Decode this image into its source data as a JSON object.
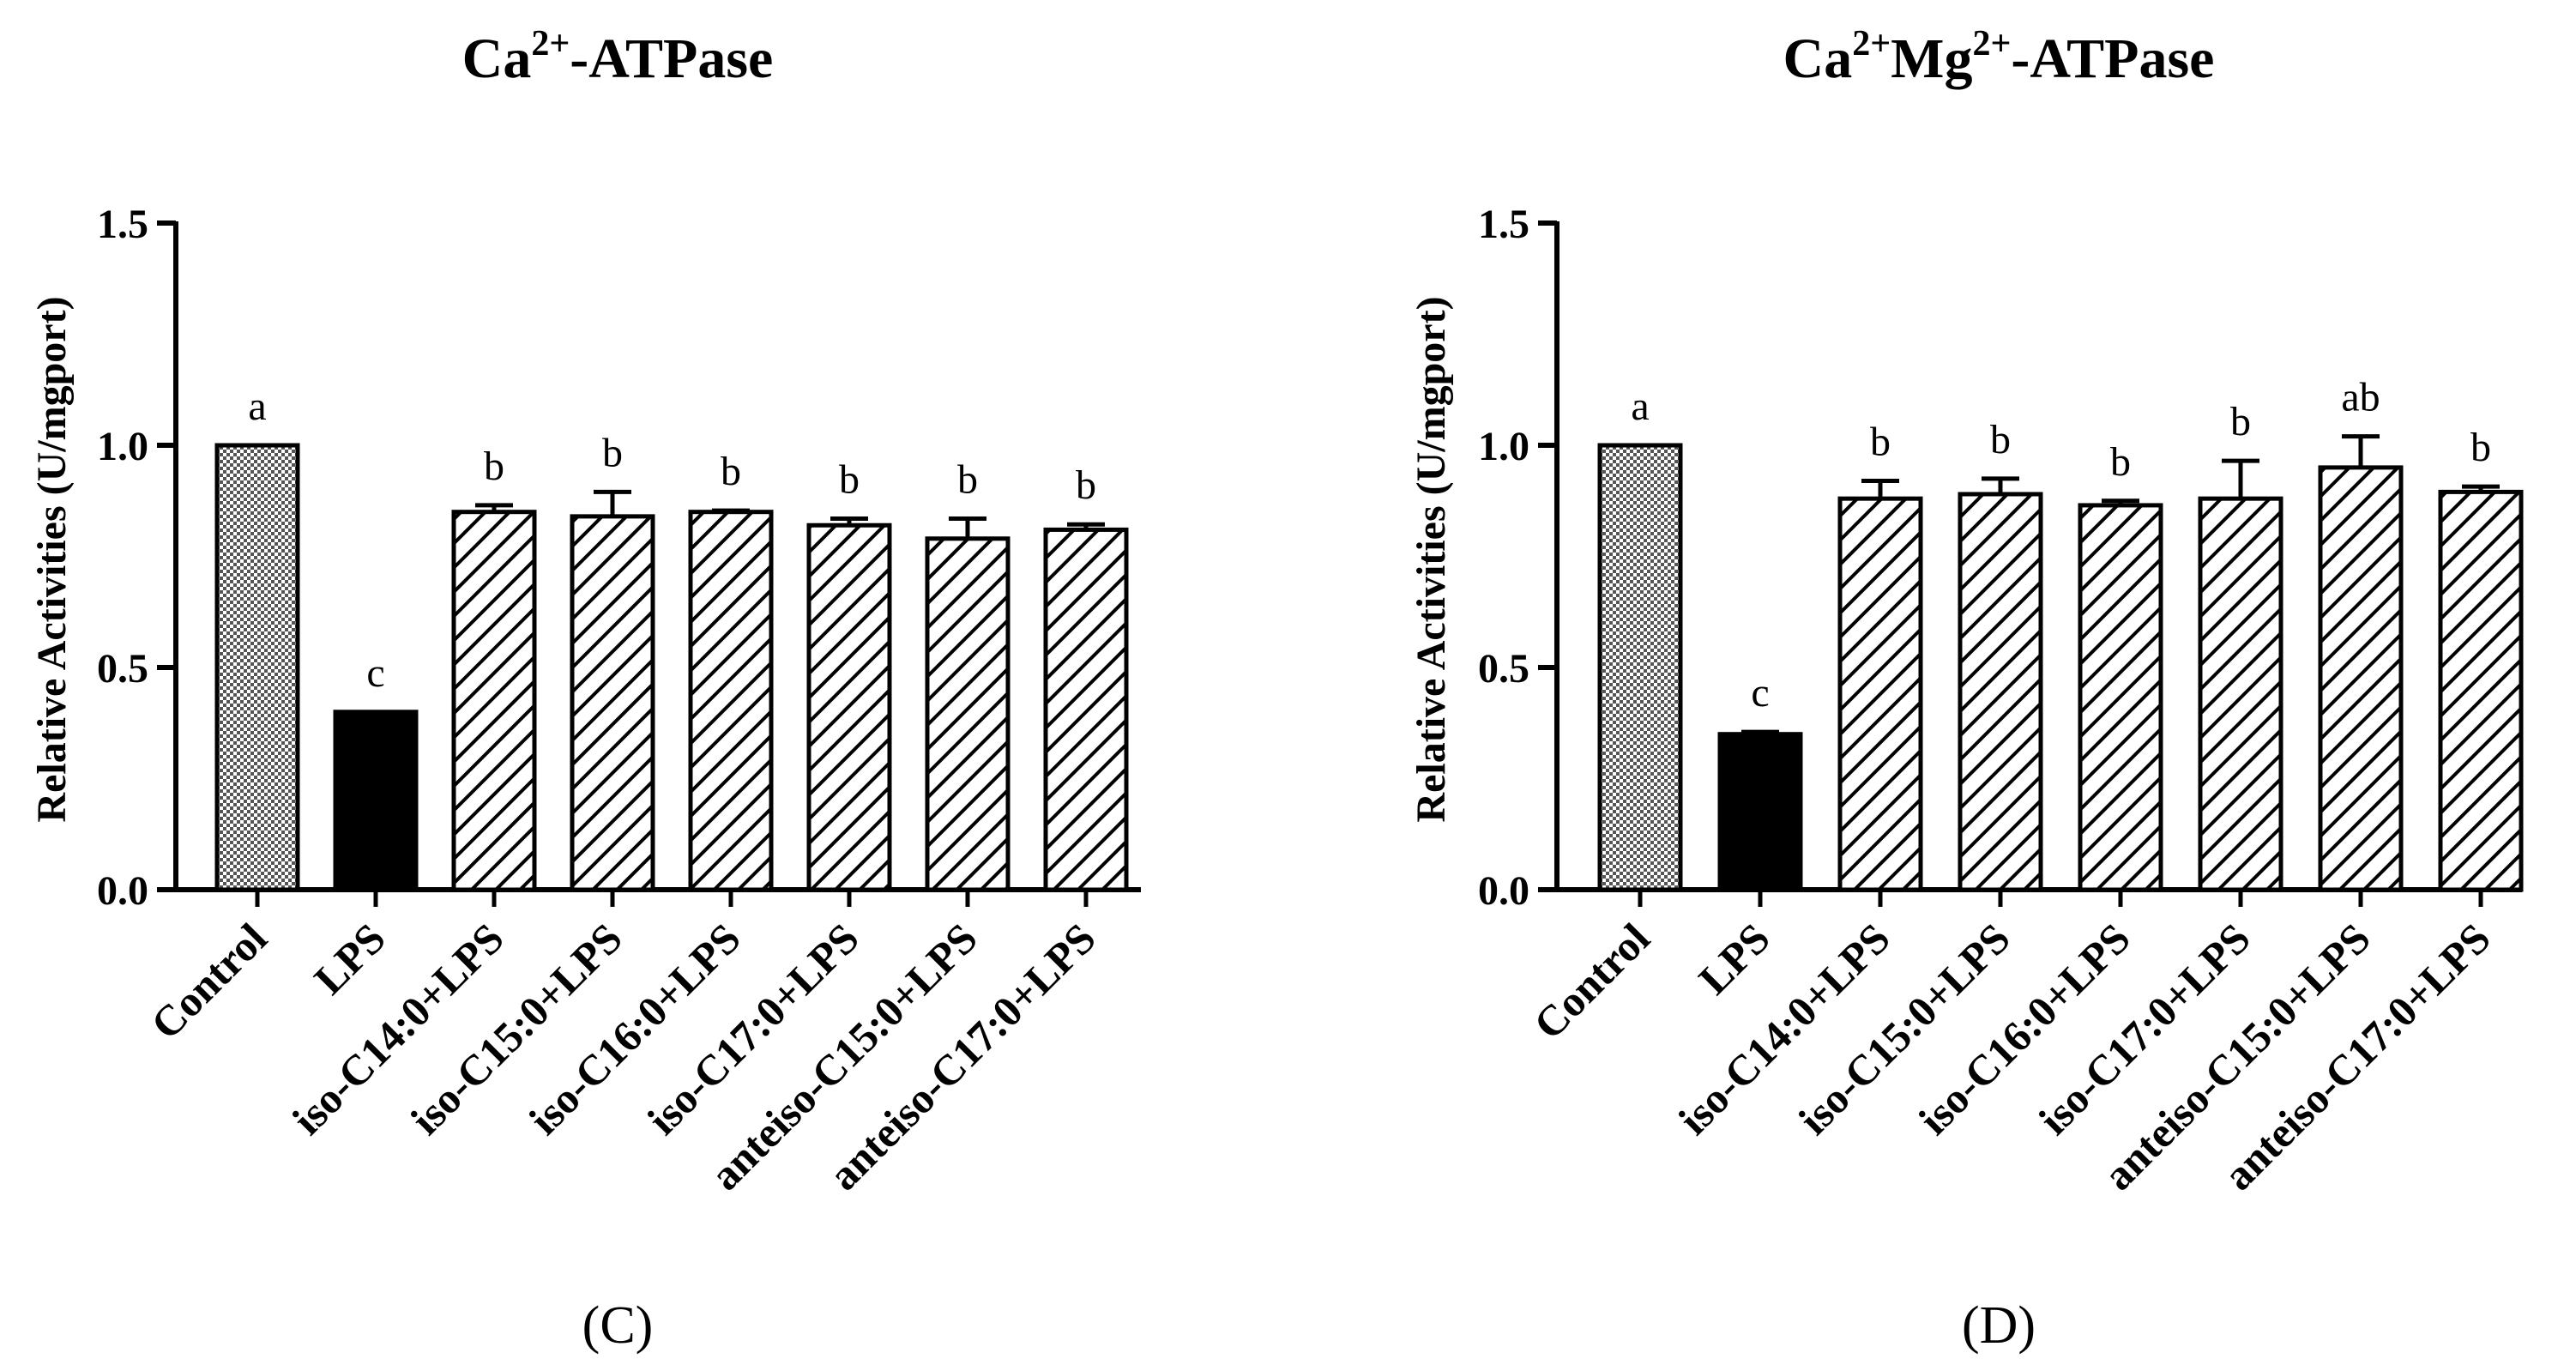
{
  "chart_data": [
    {
      "panel": "C",
      "type": "bar",
      "title": {
        "prefix": "Ca",
        "sup1": "2+",
        "rest": "-ATPase"
      },
      "ylabel": "Relative Activities (U/mgport)",
      "ylim": [
        0,
        1.5
      ],
      "yticks": [
        "0.0",
        "0.5",
        "1.0",
        "1.5"
      ],
      "categories": [
        "Control",
        "LPS",
        "iso-C14:0+LPS",
        "iso-C15:0+LPS",
        "iso-C16:0+LPS",
        "iso-C17:0+LPS",
        "anteiso-C15:0+LPS",
        "anteiso-C17:0+LPS"
      ],
      "values": [
        1.0,
        0.4,
        0.85,
        0.84,
        0.85,
        0.82,
        0.79,
        0.81
      ],
      "errors": [
        0,
        0,
        0.015,
        0.055,
        0.003,
        0.015,
        0.045,
        0.012
      ],
      "significance": [
        "a",
        "c",
        "b",
        "b",
        "b",
        "b",
        "b",
        "b"
      ],
      "fills": [
        "checker",
        "solid",
        "hatch",
        "hatch",
        "hatch",
        "hatch",
        "hatch",
        "hatch"
      ]
    },
    {
      "panel": "D",
      "type": "bar",
      "title": {
        "prefix": "Ca",
        "sup1": "2+",
        "mid": "Mg",
        "sup2": "2+",
        "rest": "-ATPase"
      },
      "ylabel": "Relative Activities (U/mgport)",
      "ylim": [
        0,
        1.5
      ],
      "yticks": [
        "0.0",
        "0.5",
        "1.0",
        "1.5"
      ],
      "categories": [
        "Control",
        "LPS",
        "iso-C14:0+LPS",
        "iso-C15:0+LPS",
        "iso-C16:0+LPS",
        "iso-C17:0+LPS",
        "anteiso-C15:0+LPS",
        "anteiso-C17:0+LPS"
      ],
      "values": [
        1.0,
        0.35,
        0.88,
        0.89,
        0.865,
        0.88,
        0.95,
        0.895
      ],
      "errors": [
        0,
        0.005,
        0.04,
        0.035,
        0.01,
        0.085,
        0.07,
        0.012
      ],
      "significance": [
        "a",
        "c",
        "b",
        "b",
        "b",
        "b",
        "ab",
        "b"
      ],
      "fills": [
        "checker",
        "solid",
        "hatch",
        "hatch",
        "hatch",
        "hatch",
        "hatch",
        "hatch"
      ]
    }
  ],
  "panel_labels": {
    "left": "(C)",
    "right": "(D)"
  }
}
